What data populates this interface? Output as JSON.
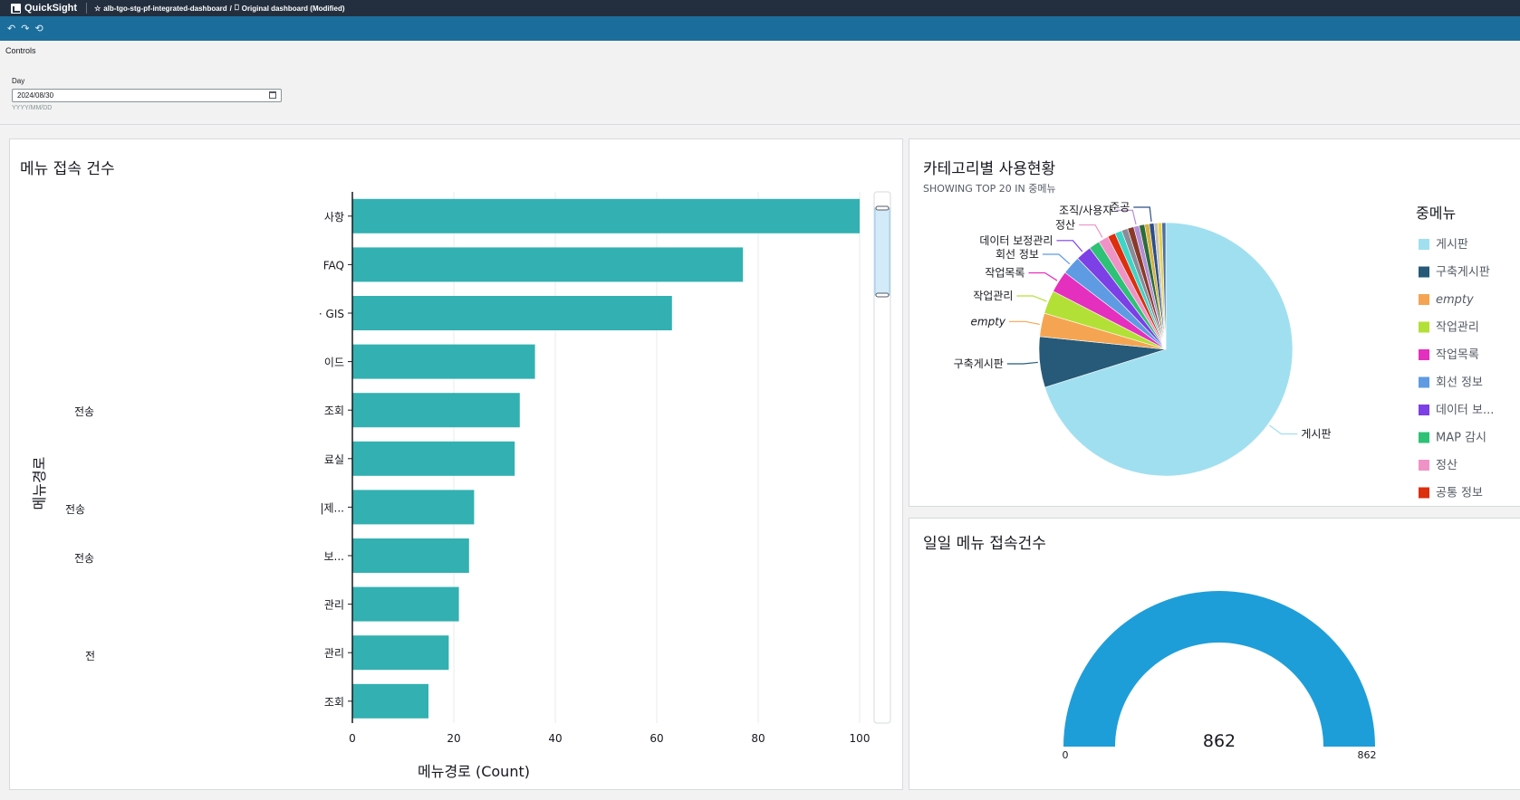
{
  "app": {
    "name": "QuickSight",
    "breadcrumb": [
      "alb-tgo-stg-pf-integrated-dashboard",
      "/",
      "Original dashboard (Modified)"
    ]
  },
  "toolbar": {
    "undo": "↶",
    "redo": "↷",
    "reset": "⟲"
  },
  "controls": {
    "title": "Controls",
    "day_label": "Day",
    "day_value": "2024/08/30",
    "day_format_hint": "YYYY/MM/DD"
  },
  "bar_panel": {
    "title": "메뉴 접속 건수",
    "left_labels": [
      "전송",
      "전송",
      "전송",
      "전"
    ]
  },
  "pie_panel": {
    "title": "카테고리별 사용현황",
    "subtitle": "SHOWING TOP 20 IN 중메뉴",
    "legend_title": "중메뉴"
  },
  "gauge_panel": {
    "title": "일일 메뉴 접속건수"
  },
  "colors": {
    "bar": "#33b0b1",
    "gauge": "#1e9ed9",
    "gauge_bg": "#ffffff"
  },
  "chart_data": [
    {
      "type": "bar",
      "orientation": "horizontal",
      "title": "메뉴 접속 건수",
      "ylabel": "메뉴경로",
      "xlabel": "메뉴경로 (Count)",
      "categories": [
        "사항",
        "FAQ",
        "· GIS",
        "이드",
        "조회",
        "료실",
        "|제...",
        "보...",
        "관리",
        "관리",
        "조회"
      ],
      "values": [
        100,
        77,
        63,
        36,
        33,
        32,
        24,
        23,
        21,
        19,
        15
      ],
      "xlim": [
        0,
        100
      ],
      "xticks": [
        0,
        20,
        40,
        60,
        80,
        100
      ],
      "grid": true
    },
    {
      "type": "pie",
      "title": "카테고리별 사용현황",
      "subtitle": "SHOWING TOP 20 IN 중메뉴",
      "legend_title": "중메뉴",
      "legend": [
        "게시판",
        "구축게시판",
        "empty",
        "작업관리",
        "작업목록",
        "회선 정보",
        "데이터 보...",
        "MAP 감시",
        "정산",
        "공통 정보"
      ],
      "slices": [
        {
          "label": "게시판",
          "value": 70.5,
          "color": "#a0dff0"
        },
        {
          "label": "구축게시판",
          "value": 6.5,
          "color": "#265a78"
        },
        {
          "label": "empty",
          "value": 3.0,
          "color": "#f5a552"
        },
        {
          "label": "작업관리",
          "value": 3.0,
          "color": "#b3e036"
        },
        {
          "label": "작업목록",
          "value": 2.8,
          "color": "#e52fbe"
        },
        {
          "label": "회선 정보",
          "value": 2.4,
          "color": "#5e9be2"
        },
        {
          "label": "데이터 보정관리",
          "value": 2.0,
          "color": "#7d3fe6"
        },
        {
          "label": "MAP 감시",
          "value": 1.4,
          "color": "#2dc276"
        },
        {
          "label": "정산",
          "value": 1.3,
          "color": "#ef93c7"
        },
        {
          "label": "공통 정보",
          "value": 1.0,
          "color": "#dd2e0e"
        },
        {
          "label": "",
          "value": 0.9,
          "color": "#3bd6c7"
        },
        {
          "label": "",
          "value": 0.8,
          "color": "#8c8b99"
        },
        {
          "label": "",
          "value": 0.8,
          "color": "#8a3a2a"
        },
        {
          "label": "조직/사용자",
          "value": 0.7,
          "color": "#b28fd6"
        },
        {
          "label": "",
          "value": 0.7,
          "color": "#2e6b3a"
        },
        {
          "label": "",
          "value": 0.6,
          "color": "#d4b23f"
        },
        {
          "label": "준공",
          "value": 0.6,
          "color": "#2b4f8a"
        },
        {
          "label": "",
          "value": 0.5,
          "color": "#c9c3b5"
        },
        {
          "label": "",
          "value": 0.5,
          "color": "#e8d24a"
        },
        {
          "label": "",
          "value": 0.5,
          "color": "#4a6fa5"
        }
      ],
      "callouts": [
        "게시판",
        "구축게시판",
        "empty",
        "작업관리",
        "작업목록",
        "회선 정보",
        "데이터 보정관리",
        "정산",
        "조직/사용자",
        "준공"
      ]
    },
    {
      "type": "gauge",
      "title": "일일 메뉴 접속건수",
      "value": 862,
      "min": 0,
      "max": 862,
      "min_label": "0",
      "max_label": "862",
      "value_label": "862"
    }
  ]
}
